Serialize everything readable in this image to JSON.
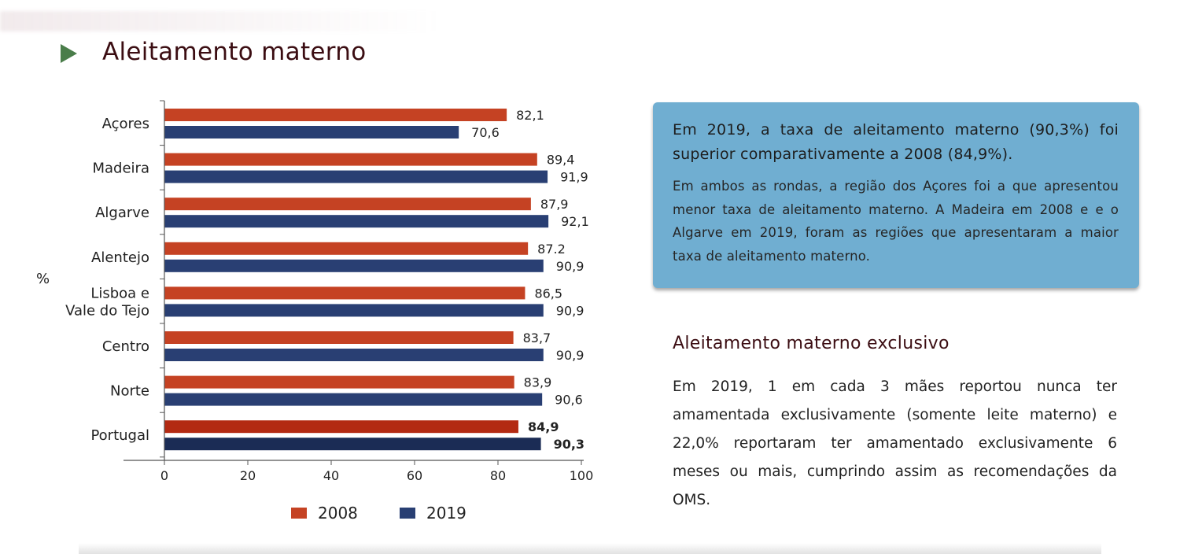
{
  "page": {
    "title": "Aleitamento materno"
  },
  "colors": {
    "series_2008": "#c54223",
    "series_2019": "#293f73",
    "series_2008_total": "#b32a12",
    "series_2019_total": "#1b2c55",
    "info_box_bg": "#70aed1",
    "title_color": "#3b0d12",
    "icon_color": "#4a7d4a"
  },
  "icons": {
    "title_bullet": "play-triangle-icon"
  },
  "chart_data": {
    "type": "bar",
    "orientation": "horizontal",
    "ylabel": "%",
    "categories": [
      [
        "Açores"
      ],
      [
        "Madeira"
      ],
      [
        "Algarve"
      ],
      [
        "Alentejo"
      ],
      [
        "Lisboa e",
        "Vale do Tejo"
      ],
      [
        "Centro"
      ],
      [
        "Norte"
      ],
      [
        "Portugal"
      ]
    ],
    "series": [
      {
        "name": "2008",
        "values": [
          82.1,
          89.4,
          87.9,
          87.2,
          86.5,
          83.7,
          83.9,
          84.9
        ],
        "labels": [
          "82,1",
          "89,4",
          "87,9",
          "87.2",
          "86,5",
          "83,7",
          "83,9",
          "84,9"
        ]
      },
      {
        "name": "2019",
        "values": [
          70.6,
          91.9,
          92.1,
          90.9,
          90.9,
          90.9,
          90.6,
          90.3
        ],
        "labels": [
          "70,6",
          "91,9",
          "92,1",
          "90,9",
          "90,9",
          "90,9",
          "90,6",
          "90,3"
        ]
      }
    ],
    "xlim": [
      0,
      100
    ],
    "xticks": [
      0,
      20,
      40,
      60,
      80,
      100
    ],
    "grid": false,
    "legend_position": "bottom",
    "highlight_category": "Portugal"
  },
  "info_box": {
    "headline": "Em 2019, a taxa de aleitamento materno (90,3%) foi superior comparativamente a 2008 (84,9%).",
    "body": "Em ambos as rondas, a região dos Açores foi a que apresentou menor taxa de aleitamento materno. A Madeira em 2008 e e o Algarve em 2019, foram as regiões que apresentaram a maior taxa de aleitamento materno."
  },
  "section": {
    "title": "Aleitamento materno exclusivo",
    "body": "Em 2019, 1 em cada 3 mães reportou nunca ter amamentada exclusivamente (somente leite materno) e 22,0% reportaram ter amamentado exclusivamente 6 meses ou mais, cumprindo assim as recomendações da OMS."
  }
}
